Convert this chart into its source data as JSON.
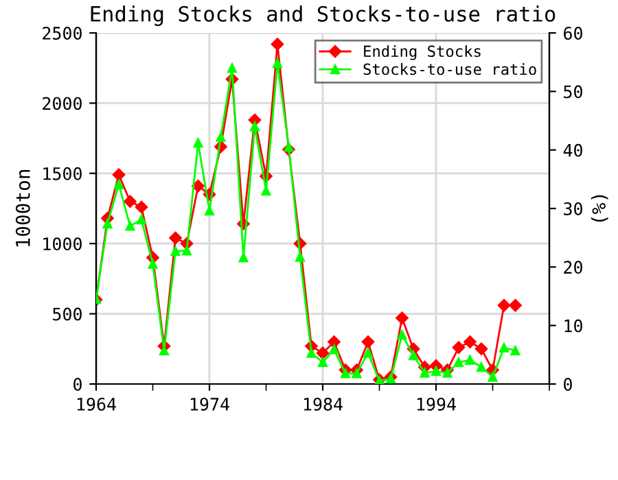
{
  "chart_data": {
    "type": "line",
    "title": "Ending Stocks and Stocks-to-use ratio",
    "ylabel": "1000ton",
    "y2label": "(%)",
    "x": [
      1964,
      1965,
      1966,
      1967,
      1968,
      1969,
      1970,
      1971,
      1972,
      1973,
      1974,
      1975,
      1976,
      1977,
      1978,
      1979,
      1980,
      1981,
      1982,
      1983,
      1984,
      1985,
      1986,
      1987,
      1988,
      1989,
      1990,
      1991,
      1992,
      1993,
      1994,
      1995,
      1996,
      1997,
      1998,
      1999,
      2000,
      2001
    ],
    "series": [
      {
        "name": "Ending Stocks",
        "color": "#ff0000",
        "marker": "diamond",
        "values": [
          600,
          1180,
          1490,
          1300,
          1260,
          900,
          270,
          1040,
          1000,
          1410,
          1350,
          1690,
          2170,
          1140,
          1880,
          1480,
          2420,
          1670,
          1000,
          270,
          220,
          300,
          100,
          100,
          300,
          30,
          50,
          470,
          250,
          120,
          130,
          100,
          260,
          300,
          250,
          100,
          560,
          560
        ]
      },
      {
        "name": "Stocks-to-use ratio",
        "color": "#00ff00",
        "marker": "triangle",
        "axis": "y2",
        "values": [
          14.5,
          27.4,
          34.1,
          27.0,
          28.1,
          20.5,
          5.7,
          22.7,
          22.8,
          41.2,
          29.6,
          42.2,
          54.0,
          21.6,
          44.0,
          33.0,
          54.8,
          40.5,
          21.7,
          5.3,
          3.7,
          5.9,
          1.8,
          1.8,
          5.3,
          0.5,
          0.9,
          8.4,
          4.9,
          1.9,
          2.2,
          1.9,
          3.7,
          4.1,
          2.9,
          1.2,
          6.2,
          5.7
        ]
      }
    ],
    "xlim": [
      1964,
      2004
    ],
    "xticks": [
      1964,
      {
        "value": 1969,
        "label": null
      },
      1974,
      {
        "value": 1979,
        "label": null
      },
      1984,
      {
        "value": 1989,
        "label": null
      },
      1994,
      {
        "value": 1999,
        "label": null
      },
      {
        "value": 2004,
        "label": null
      }
    ],
    "ylim": [
      0,
      2500
    ],
    "yticks": [
      0,
      500,
      1000,
      1500,
      2000,
      2500
    ],
    "y2lim": [
      0,
      60
    ],
    "y2ticks": [
      0,
      10,
      20,
      30,
      40,
      50,
      60
    ],
    "grid": true,
    "legend": "top right",
    "line_style": "solid"
  }
}
